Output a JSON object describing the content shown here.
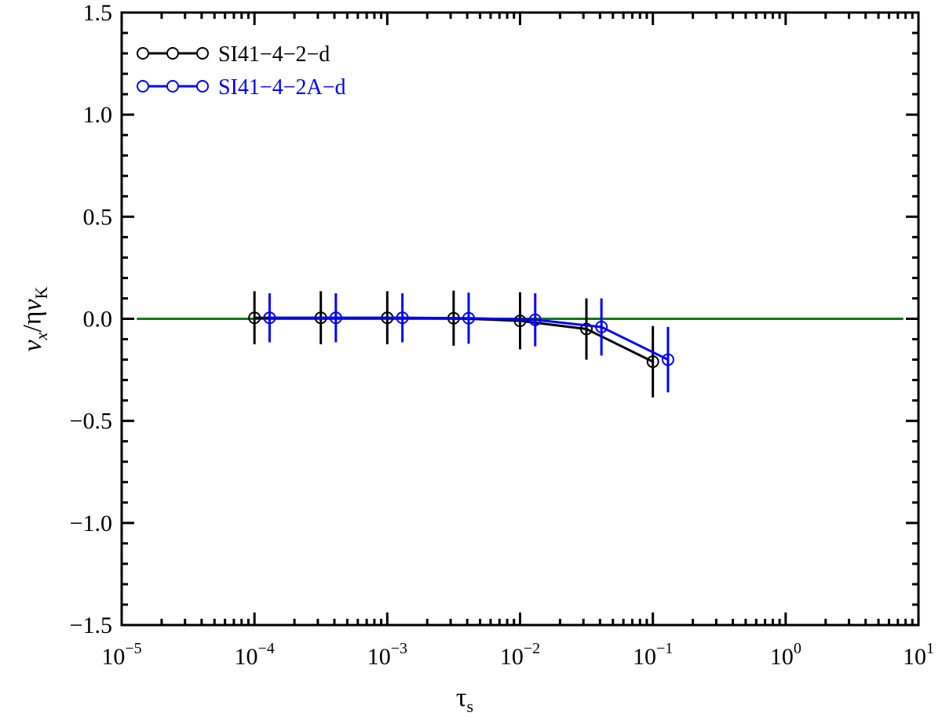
{
  "chart_data": {
    "type": "errorbar-line",
    "xlabel": "τ",
    "xlabel_sub": "s",
    "ylabel_parts": [
      "v",
      "x",
      "/η",
      "v",
      "K"
    ],
    "xscale": "log",
    "xlim": [
      1e-05,
      10
    ],
    "ylim": [
      -1.5,
      1.5
    ],
    "xticks": [
      {
        "value": 1e-05,
        "label": "10",
        "exponent": "−5"
      },
      {
        "value": 0.0001,
        "label": "10",
        "exponent": "−4"
      },
      {
        "value": 0.001,
        "label": "10",
        "exponent": "−3"
      },
      {
        "value": 0.01,
        "label": "10",
        "exponent": "−2"
      },
      {
        "value": 0.1,
        "label": "10",
        "exponent": "−1"
      },
      {
        "value": 1,
        "label": "10",
        "exponent": "0"
      },
      {
        "value": 10,
        "label": "10",
        "exponent": "1"
      }
    ],
    "yticks": [
      {
        "value": -1.5,
        "label": "−1.5"
      },
      {
        "value": -1,
        "label": "−1.0"
      },
      {
        "value": -0.5,
        "label": "−0.5"
      },
      {
        "value": 0,
        "label": "0.0"
      },
      0.5,
      {
        "value": 1,
        "label": "1.0"
      },
      1.5
    ],
    "legend": "upper left",
    "reference_line": {
      "y": 0,
      "x": [
        1.3e-05,
        7.7
      ],
      "color": "#008000"
    },
    "series": [
      {
        "name": "SI41−4−2−d",
        "color": "#000000",
        "x": [
          0.0001,
          0.000316,
          0.001,
          0.00316,
          0.01,
          0.0316,
          0.1
        ],
        "values": [
          0.005,
          0.005,
          0.005,
          0.003,
          -0.01,
          -0.05,
          -0.21
        ],
        "errors": [
          0.13,
          0.13,
          0.13,
          0.135,
          0.14,
          0.15,
          0.175
        ]
      },
      {
        "name": "SI41−4−2A−d",
        "color": "#0000ff",
        "x": [
          0.00013,
          0.00041,
          0.0013,
          0.0041,
          0.013,
          0.041,
          0.13
        ],
        "values": [
          0.005,
          0.005,
          0.005,
          0.003,
          -0.005,
          -0.04,
          -0.2
        ],
        "errors": [
          0.12,
          0.12,
          0.12,
          0.125,
          0.13,
          0.14,
          0.16
        ]
      }
    ]
  }
}
